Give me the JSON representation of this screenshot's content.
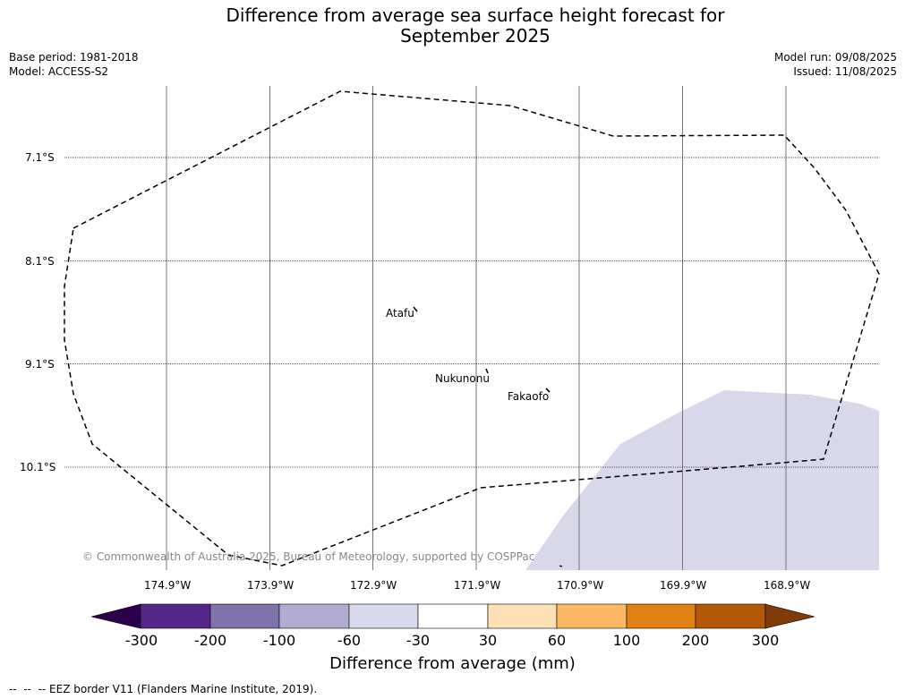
{
  "title": {
    "line1": "Difference from average sea surface height forecast for",
    "line2": "September 2025"
  },
  "meta": {
    "base_period": "Base period: 1981-2018",
    "model": "Model: ACCESS-S2",
    "model_run": "Model run: 09/08/2025",
    "issued": "Issued: 11/08/2025"
  },
  "map": {
    "lat_labels": [
      "7.1°S",
      "8.1°S",
      "9.1°S",
      "10.1°S"
    ],
    "lon_labels": [
      "174.9°W",
      "173.9°W",
      "172.9°W",
      "171.9°W",
      "170.9°W",
      "169.9°W",
      "168.9°W"
    ],
    "places": [
      "Atafu",
      "Nukunonu",
      "Fakaofo"
    ],
    "copyright": "© Commonwealth of Australia 2025, Bureau of Meteorology, supported by COSPPac",
    "shaded_region_color": "#d8d8ea",
    "shaded_region_category": "-60 to -30 mm"
  },
  "colorbar": {
    "label": "Difference from average (mm)",
    "ticks": [
      "-300",
      "-200",
      "-100",
      "-60",
      "-30",
      "30",
      "60",
      "100",
      "200",
      "300"
    ],
    "colors": [
      "#2d004b",
      "#542788",
      "#8073ac",
      "#b2abd2",
      "#d8daeb",
      "#ffffff",
      "#fee0b6",
      "#fdb863",
      "#e08214",
      "#b35806",
      "#7f3b08"
    ]
  },
  "footer": {
    "legend_text": "-- EEZ border V11 (Flanders Marine Institute, 2019)."
  }
}
